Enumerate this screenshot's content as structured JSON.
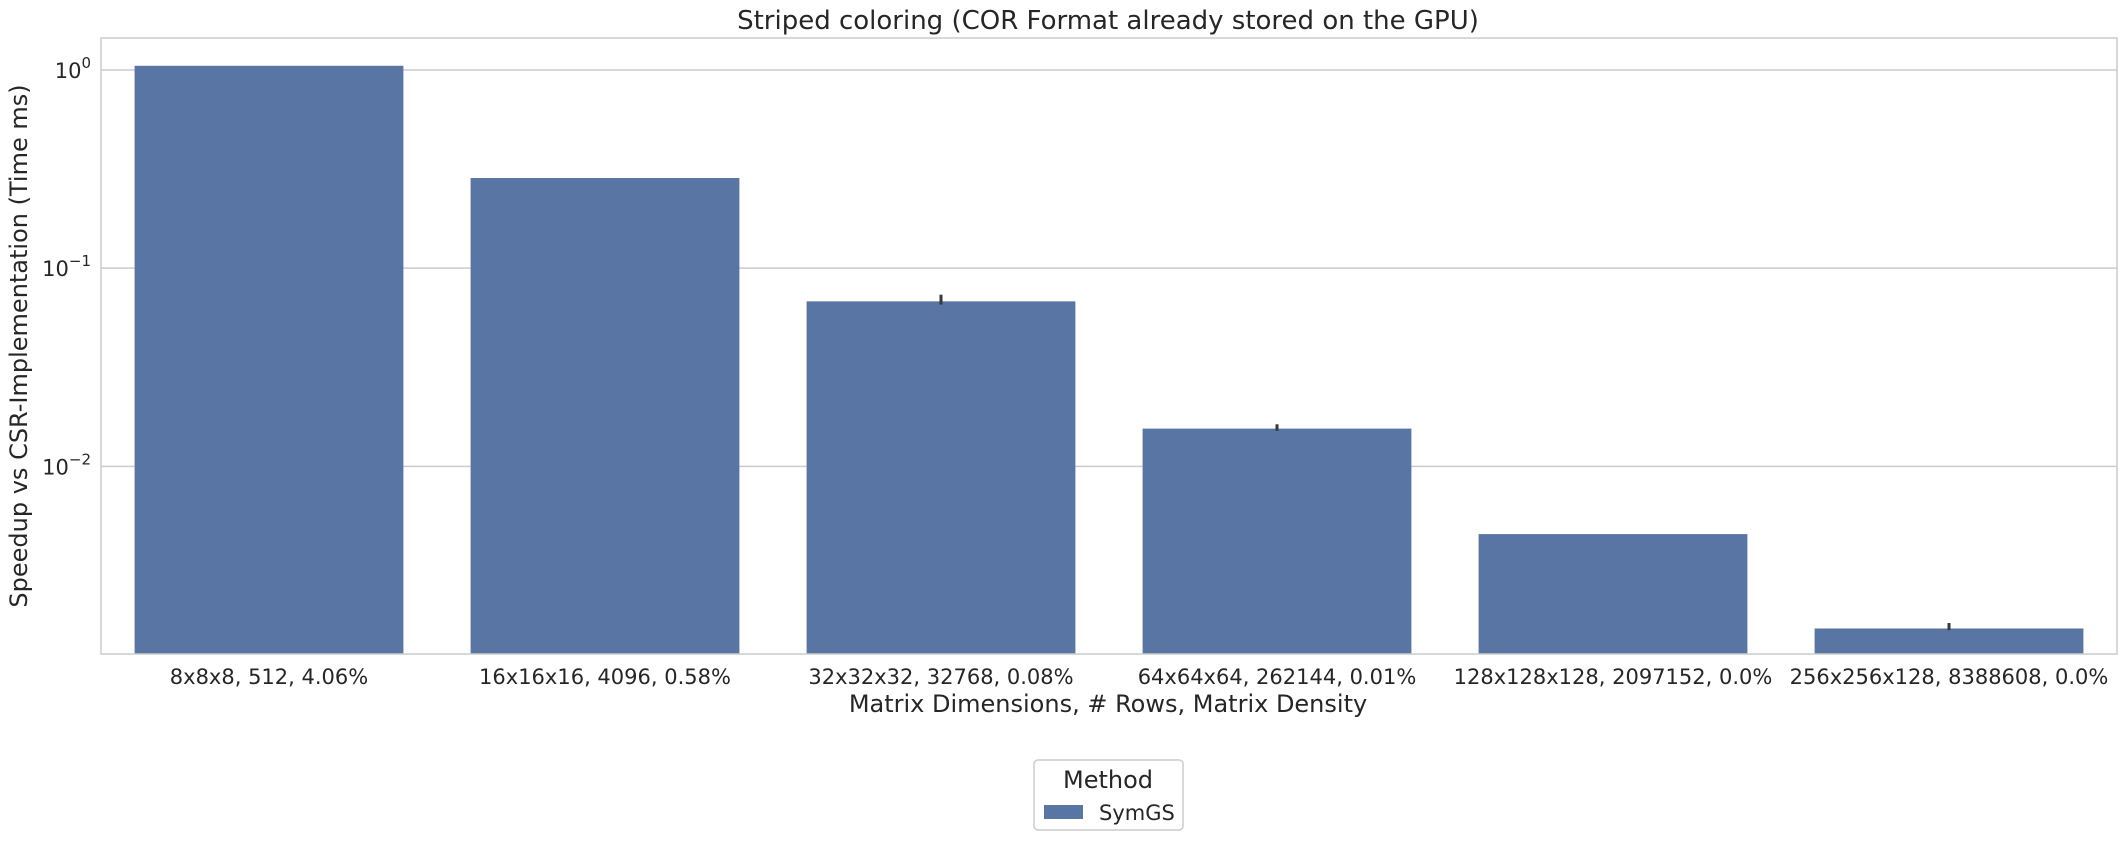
{
  "chart_data": {
    "type": "bar",
    "title": "Striped coloring (COR Format already stored on the GPU)",
    "xlabel": "Matrix Dimensions, # Rows, Matrix Density",
    "ylabel": "Speedup vs CSR-Implementation (Time ms)",
    "yscale": "log",
    "ylim": [
      0.00113,
      1.45
    ],
    "yticks": [
      {
        "value": 1,
        "base": "10",
        "exponent": "0"
      },
      {
        "value": 0.1,
        "base": "10",
        "exponent": "−1"
      },
      {
        "value": 0.01,
        "base": "10",
        "exponent": "−2"
      }
    ],
    "grid": true,
    "legend": {
      "title": "Method",
      "placement": "bottom-center"
    },
    "categories": [
      "8x8x8, 512, 4.06%",
      "16x16x16, 4096, 0.58%",
      "32x32x32, 32768, 0.08%",
      "64x64x64, 262144, 0.01%",
      "128x128x128, 2097152, 0.0%",
      "256x256x128, 8388608, 0.0%"
    ],
    "series": [
      {
        "name": "SymGS",
        "color": "#5875a4",
        "values": [
          1.05,
          0.285,
          0.068,
          0.0155,
          0.00455,
          0.00152
        ],
        "error_high": [
          null,
          null,
          0.0735,
          0.0163,
          null,
          0.00162
        ],
        "error_low": [
          null,
          null,
          0.0655,
          0.0151,
          null,
          0.00149
        ]
      }
    ]
  }
}
